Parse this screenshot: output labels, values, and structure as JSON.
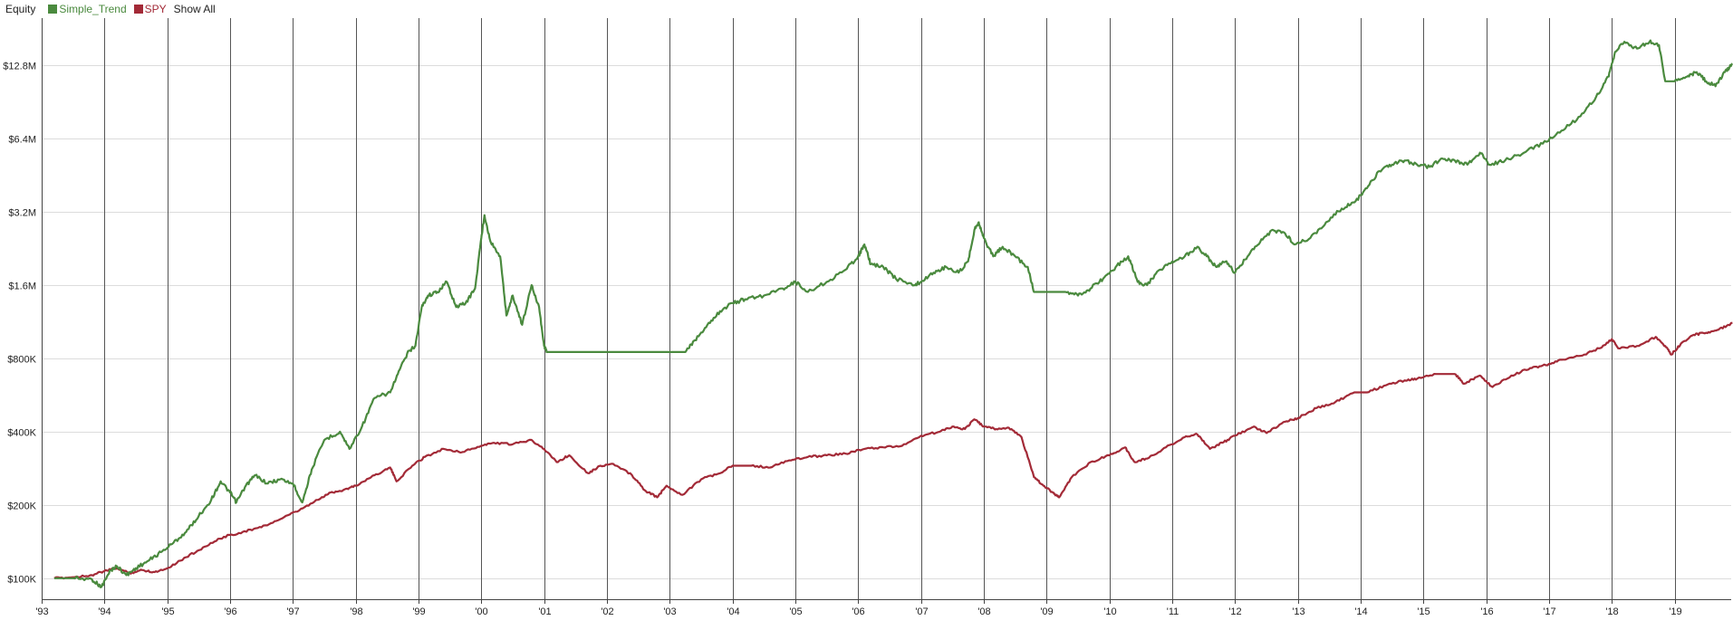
{
  "legend": {
    "title": "Equity",
    "show_all_label": "Show All"
  },
  "chart_data": {
    "type": "line",
    "title": "",
    "xlabel": "",
    "ylabel": "",
    "y_scale": "log",
    "ylim": [
      82000,
      20000000
    ],
    "xlim": [
      1993.0,
      2019.9
    ],
    "grid": {
      "horizontal": true,
      "vertical": true
    },
    "legend_position": "top-left",
    "x_ticks": [
      {
        "value": 1993,
        "label": "'93"
      },
      {
        "value": 1994,
        "label": "'94"
      },
      {
        "value": 1995,
        "label": "'95"
      },
      {
        "value": 1996,
        "label": "'96"
      },
      {
        "value": 1997,
        "label": "'97"
      },
      {
        "value": 1998,
        "label": "'98"
      },
      {
        "value": 1999,
        "label": "'99"
      },
      {
        "value": 2000,
        "label": "'00"
      },
      {
        "value": 2001,
        "label": "'01"
      },
      {
        "value": 2002,
        "label": "'02"
      },
      {
        "value": 2003,
        "label": "'03"
      },
      {
        "value": 2004,
        "label": "'04"
      },
      {
        "value": 2005,
        "label": "'05"
      },
      {
        "value": 2006,
        "label": "'06"
      },
      {
        "value": 2007,
        "label": "'07"
      },
      {
        "value": 2008,
        "label": "'08"
      },
      {
        "value": 2009,
        "label": "'09"
      },
      {
        "value": 2010,
        "label": "'10"
      },
      {
        "value": 2011,
        "label": "'11"
      },
      {
        "value": 2012,
        "label": "'12"
      },
      {
        "value": 2013,
        "label": "'13"
      },
      {
        "value": 2014,
        "label": "'14"
      },
      {
        "value": 2015,
        "label": "'15"
      },
      {
        "value": 2016,
        "label": "'16"
      },
      {
        "value": 2017,
        "label": "'17"
      },
      {
        "value": 2018,
        "label": "'18"
      },
      {
        "value": 2019,
        "label": "'19"
      }
    ],
    "y_ticks": [
      {
        "value": 100000,
        "label": "$100K"
      },
      {
        "value": 200000,
        "label": "$200K"
      },
      {
        "value": 400000,
        "label": "$400K"
      },
      {
        "value": 800000,
        "label": "$800K"
      },
      {
        "value": 1600000,
        "label": "$1.6M"
      },
      {
        "value": 3200000,
        "label": "$3.2M"
      },
      {
        "value": 6400000,
        "label": "$6.4M"
      },
      {
        "value": 12800000,
        "label": "$12.8M"
      }
    ],
    "series": [
      {
        "name": "Simple_Trend",
        "color": "#4a8a3e",
        "points": [
          [
            1993.2,
            100000
          ],
          [
            1993.5,
            100000
          ],
          [
            1993.8,
            99000
          ],
          [
            1993.95,
            92000
          ],
          [
            1994.1,
            108000
          ],
          [
            1994.2,
            112000
          ],
          [
            1994.35,
            103000
          ],
          [
            1994.5,
            110000
          ],
          [
            1994.7,
            118000
          ],
          [
            1994.9,
            128000
          ],
          [
            1995.1,
            140000
          ],
          [
            1995.3,
            155000
          ],
          [
            1995.5,
            180000
          ],
          [
            1995.7,
            210000
          ],
          [
            1995.85,
            250000
          ],
          [
            1996.0,
            225000
          ],
          [
            1996.1,
            205000
          ],
          [
            1996.25,
            240000
          ],
          [
            1996.4,
            265000
          ],
          [
            1996.6,
            245000
          ],
          [
            1996.8,
            255000
          ],
          [
            1997.0,
            245000
          ],
          [
            1997.15,
            205000
          ],
          [
            1997.3,
            280000
          ],
          [
            1997.5,
            370000
          ],
          [
            1997.75,
            400000
          ],
          [
            1997.9,
            340000
          ],
          [
            1998.1,
            420000
          ],
          [
            1998.3,
            550000
          ],
          [
            1998.55,
            580000
          ],
          [
            1998.7,
            720000
          ],
          [
            1998.85,
            860000
          ],
          [
            1998.95,
            900000
          ],
          [
            1999.05,
            1300000
          ],
          [
            1999.15,
            1450000
          ],
          [
            1999.3,
            1500000
          ],
          [
            1999.45,
            1650000
          ],
          [
            1999.6,
            1300000
          ],
          [
            1999.75,
            1350000
          ],
          [
            1999.9,
            1550000
          ],
          [
            2000.0,
            2500000
          ],
          [
            2000.05,
            3100000
          ],
          [
            2000.15,
            2400000
          ],
          [
            2000.3,
            2100000
          ],
          [
            2000.4,
            1200000
          ],
          [
            2000.5,
            1450000
          ],
          [
            2000.65,
            1100000
          ],
          [
            2000.8,
            1600000
          ],
          [
            2000.92,
            1300000
          ],
          [
            2001.0,
            900000
          ],
          [
            2001.05,
            850000
          ],
          [
            2001.5,
            850000
          ],
          [
            2002.0,
            850000
          ],
          [
            2002.5,
            850000
          ],
          [
            2003.0,
            850000
          ],
          [
            2003.25,
            850000
          ],
          [
            2003.4,
            950000
          ],
          [
            2003.6,
            1100000
          ],
          [
            2003.8,
            1250000
          ],
          [
            2004.0,
            1350000
          ],
          [
            2004.2,
            1400000
          ],
          [
            2004.5,
            1450000
          ],
          [
            2004.8,
            1550000
          ],
          [
            2005.0,
            1650000
          ],
          [
            2005.2,
            1500000
          ],
          [
            2005.5,
            1650000
          ],
          [
            2005.8,
            1850000
          ],
          [
            2006.0,
            2100000
          ],
          [
            2006.1,
            2350000
          ],
          [
            2006.2,
            1950000
          ],
          [
            2006.4,
            1900000
          ],
          [
            2006.6,
            1700000
          ],
          [
            2006.9,
            1600000
          ],
          [
            2007.0,
            1650000
          ],
          [
            2007.2,
            1800000
          ],
          [
            2007.4,
            1900000
          ],
          [
            2007.6,
            1800000
          ],
          [
            2007.75,
            2000000
          ],
          [
            2007.85,
            2700000
          ],
          [
            2007.92,
            2900000
          ],
          [
            2008.0,
            2500000
          ],
          [
            2008.15,
            2100000
          ],
          [
            2008.3,
            2300000
          ],
          [
            2008.5,
            2100000
          ],
          [
            2008.7,
            1900000
          ],
          [
            2008.8,
            1500000
          ],
          [
            2009.0,
            1500000
          ],
          [
            2009.3,
            1500000
          ],
          [
            2009.5,
            1450000
          ],
          [
            2009.7,
            1550000
          ],
          [
            2009.9,
            1700000
          ],
          [
            2010.1,
            1900000
          ],
          [
            2010.3,
            2100000
          ],
          [
            2010.45,
            1650000
          ],
          [
            2010.6,
            1600000
          ],
          [
            2010.8,
            1850000
          ],
          [
            2011.0,
            2000000
          ],
          [
            2011.2,
            2100000
          ],
          [
            2011.4,
            2300000
          ],
          [
            2011.55,
            2100000
          ],
          [
            2011.7,
            1900000
          ],
          [
            2011.85,
            2000000
          ],
          [
            2012.0,
            1800000
          ],
          [
            2012.2,
            2100000
          ],
          [
            2012.4,
            2400000
          ],
          [
            2012.6,
            2700000
          ],
          [
            2012.8,
            2600000
          ],
          [
            2012.95,
            2350000
          ],
          [
            2013.2,
            2500000
          ],
          [
            2013.45,
            2900000
          ],
          [
            2013.7,
            3300000
          ],
          [
            2013.9,
            3500000
          ],
          [
            2014.1,
            4000000
          ],
          [
            2014.3,
            4700000
          ],
          [
            2014.5,
            5000000
          ],
          [
            2014.7,
            5200000
          ],
          [
            2014.9,
            5000000
          ],
          [
            2015.1,
            4900000
          ],
          [
            2015.3,
            5300000
          ],
          [
            2015.5,
            5200000
          ],
          [
            2015.7,
            5000000
          ],
          [
            2015.9,
            5600000
          ],
          [
            2016.05,
            5000000
          ],
          [
            2016.3,
            5200000
          ],
          [
            2016.6,
            5600000
          ],
          [
            2016.9,
            6100000
          ],
          [
            2017.2,
            6900000
          ],
          [
            2017.5,
            7900000
          ],
          [
            2017.75,
            9500000
          ],
          [
            2017.95,
            11500000
          ],
          [
            2018.05,
            14500000
          ],
          [
            2018.2,
            16000000
          ],
          [
            2018.4,
            15000000
          ],
          [
            2018.6,
            16000000
          ],
          [
            2018.75,
            15500000
          ],
          [
            2018.85,
            11000000
          ],
          [
            2019.0,
            11000000
          ],
          [
            2019.2,
            11500000
          ],
          [
            2019.35,
            12000000
          ],
          [
            2019.5,
            11000000
          ],
          [
            2019.65,
            10500000
          ],
          [
            2019.8,
            12000000
          ],
          [
            2019.92,
            13000000
          ]
        ]
      },
      {
        "name": "SPY",
        "color": "#a32a37",
        "points": [
          [
            1993.2,
            100000
          ],
          [
            1993.5,
            101000
          ],
          [
            1993.8,
            103000
          ],
          [
            1994.0,
            107000
          ],
          [
            1994.2,
            110000
          ],
          [
            1994.4,
            105000
          ],
          [
            1994.6,
            108000
          ],
          [
            1994.8,
            106000
          ],
          [
            1995.0,
            110000
          ],
          [
            1995.3,
            122000
          ],
          [
            1995.6,
            135000
          ],
          [
            1995.9,
            148000
          ],
          [
            1996.2,
            155000
          ],
          [
            1996.5,
            162000
          ],
          [
            1996.8,
            175000
          ],
          [
            1997.1,
            190000
          ],
          [
            1997.4,
            210000
          ],
          [
            1997.6,
            225000
          ],
          [
            1997.8,
            230000
          ],
          [
            1998.0,
            240000
          ],
          [
            1998.3,
            265000
          ],
          [
            1998.55,
            285000
          ],
          [
            1998.65,
            250000
          ],
          [
            1998.9,
            290000
          ],
          [
            1999.1,
            315000
          ],
          [
            1999.4,
            340000
          ],
          [
            1999.7,
            330000
          ],
          [
            2000.0,
            350000
          ],
          [
            2000.2,
            360000
          ],
          [
            2000.5,
            355000
          ],
          [
            2000.8,
            370000
          ],
          [
            2001.0,
            340000
          ],
          [
            2001.2,
            300000
          ],
          [
            2001.4,
            320000
          ],
          [
            2001.7,
            270000
          ],
          [
            2001.9,
            290000
          ],
          [
            2002.1,
            295000
          ],
          [
            2002.4,
            265000
          ],
          [
            2002.6,
            230000
          ],
          [
            2002.8,
            215000
          ],
          [
            2002.95,
            240000
          ],
          [
            2003.2,
            220000
          ],
          [
            2003.5,
            255000
          ],
          [
            2003.8,
            270000
          ],
          [
            2004.0,
            290000
          ],
          [
            2004.3,
            290000
          ],
          [
            2004.6,
            285000
          ],
          [
            2004.9,
            305000
          ],
          [
            2005.2,
            315000
          ],
          [
            2005.5,
            320000
          ],
          [
            2005.8,
            325000
          ],
          [
            2006.1,
            340000
          ],
          [
            2006.4,
            345000
          ],
          [
            2006.7,
            350000
          ],
          [
            2007.0,
            385000
          ],
          [
            2007.3,
            400000
          ],
          [
            2007.5,
            420000
          ],
          [
            2007.7,
            410000
          ],
          [
            2007.85,
            450000
          ],
          [
            2008.0,
            420000
          ],
          [
            2008.2,
            410000
          ],
          [
            2008.4,
            415000
          ],
          [
            2008.6,
            380000
          ],
          [
            2008.8,
            260000
          ],
          [
            2008.95,
            240000
          ],
          [
            2009.1,
            225000
          ],
          [
            2009.2,
            215000
          ],
          [
            2009.4,
            260000
          ],
          [
            2009.7,
            300000
          ],
          [
            2010.0,
            320000
          ],
          [
            2010.25,
            345000
          ],
          [
            2010.4,
            300000
          ],
          [
            2010.6,
            310000
          ],
          [
            2010.9,
            345000
          ],
          [
            2011.2,
            380000
          ],
          [
            2011.4,
            390000
          ],
          [
            2011.6,
            340000
          ],
          [
            2011.8,
            360000
          ],
          [
            2012.0,
            385000
          ],
          [
            2012.3,
            420000
          ],
          [
            2012.5,
            395000
          ],
          [
            2012.8,
            440000
          ],
          [
            2013.0,
            455000
          ],
          [
            2013.3,
            500000
          ],
          [
            2013.6,
            530000
          ],
          [
            2013.9,
            580000
          ],
          [
            2014.1,
            580000
          ],
          [
            2014.4,
            620000
          ],
          [
            2014.7,
            650000
          ],
          [
            2014.9,
            660000
          ],
          [
            2015.2,
            690000
          ],
          [
            2015.5,
            690000
          ],
          [
            2015.65,
            630000
          ],
          [
            2015.9,
            680000
          ],
          [
            2016.1,
            610000
          ],
          [
            2016.4,
            680000
          ],
          [
            2016.7,
            730000
          ],
          [
            2016.95,
            750000
          ],
          [
            2017.2,
            790000
          ],
          [
            2017.5,
            820000
          ],
          [
            2017.8,
            880000
          ],
          [
            2018.0,
            960000
          ],
          [
            2018.1,
            880000
          ],
          [
            2018.4,
            900000
          ],
          [
            2018.7,
            980000
          ],
          [
            2018.85,
            900000
          ],
          [
            2018.95,
            830000
          ],
          [
            2019.1,
            920000
          ],
          [
            2019.3,
            1000000
          ],
          [
            2019.5,
            1020000
          ],
          [
            2019.7,
            1050000
          ],
          [
            2019.92,
            1120000
          ]
        ]
      }
    ]
  }
}
